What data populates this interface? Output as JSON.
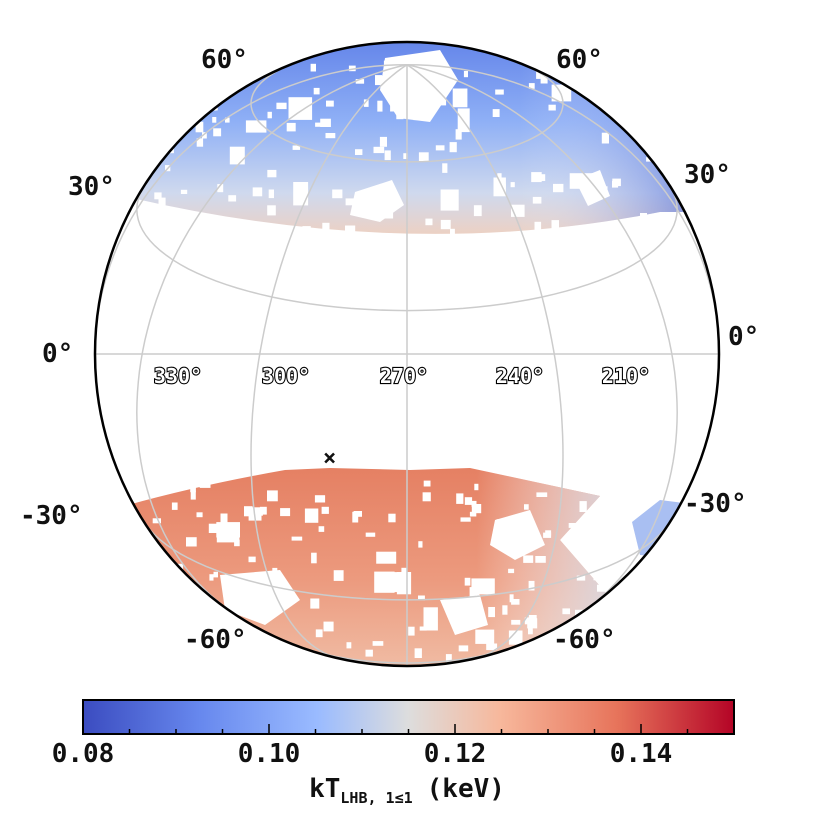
{
  "map": {
    "lat_labels": {
      "n60": "60°",
      "n30": "30°",
      "eq": "0°",
      "s30": "-30°",
      "s60": "-60°"
    },
    "lon_labels": [
      "330°",
      "300°",
      "270°",
      "240°",
      "210°"
    ],
    "marker_symbol": "×",
    "colors": {
      "cold": "#3b4cc0",
      "mid": "#dddddd",
      "hot": "#b40426",
      "graticule": "#cccccc",
      "outline": "#000000"
    }
  },
  "colorbar": {
    "range": [
      0.08,
      0.15
    ],
    "tick_labels": [
      "0.08",
      "0.10",
      "0.12",
      "0.14"
    ],
    "title_main": "kT",
    "title_sub": "LHB, 1≤1",
    "title_unit": "(keV)"
  }
}
